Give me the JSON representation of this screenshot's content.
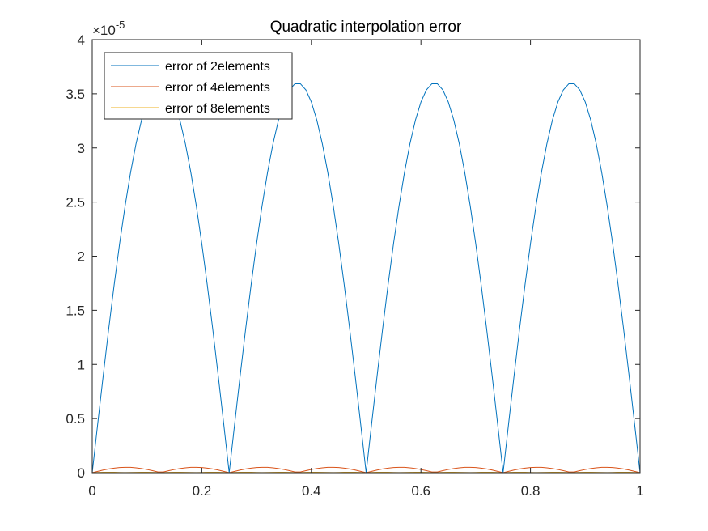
{
  "chart_data": {
    "type": "line",
    "title": "Quadratic interpolation error",
    "xlabel": "",
    "ylabel": "",
    "xlim": [
      0,
      1
    ],
    "ylim": [
      0,
      4
    ],
    "y_exponent_base": "×10",
    "y_exponent_power": "-5",
    "x_ticks": [
      0,
      0.2,
      0.4,
      0.6,
      0.8,
      1
    ],
    "x_tick_labels": [
      "0",
      "0.2",
      "0.4",
      "0.6",
      "0.8",
      "1"
    ],
    "y_ticks": [
      0,
      0.5,
      1,
      1.5,
      2,
      2.5,
      3,
      3.5,
      4
    ],
    "y_tick_labels": [
      "0",
      "0.5",
      "1",
      "1.5",
      "2",
      "2.5",
      "3",
      "3.5",
      "4"
    ],
    "grid": false,
    "legend_position": "top-left",
    "series": [
      {
        "name": "error of 2elements",
        "color": "#0072BD",
        "elements": 2,
        "samples": 101,
        "peak": 3.6
      },
      {
        "name": "error of 4elements",
        "color": "#D95319",
        "elements": 4,
        "samples": 101,
        "peak": 0.05
      },
      {
        "name": "error of 8elements",
        "color": "#EDB120",
        "elements": 8,
        "samples": 101,
        "peak": 0.004
      }
    ]
  }
}
